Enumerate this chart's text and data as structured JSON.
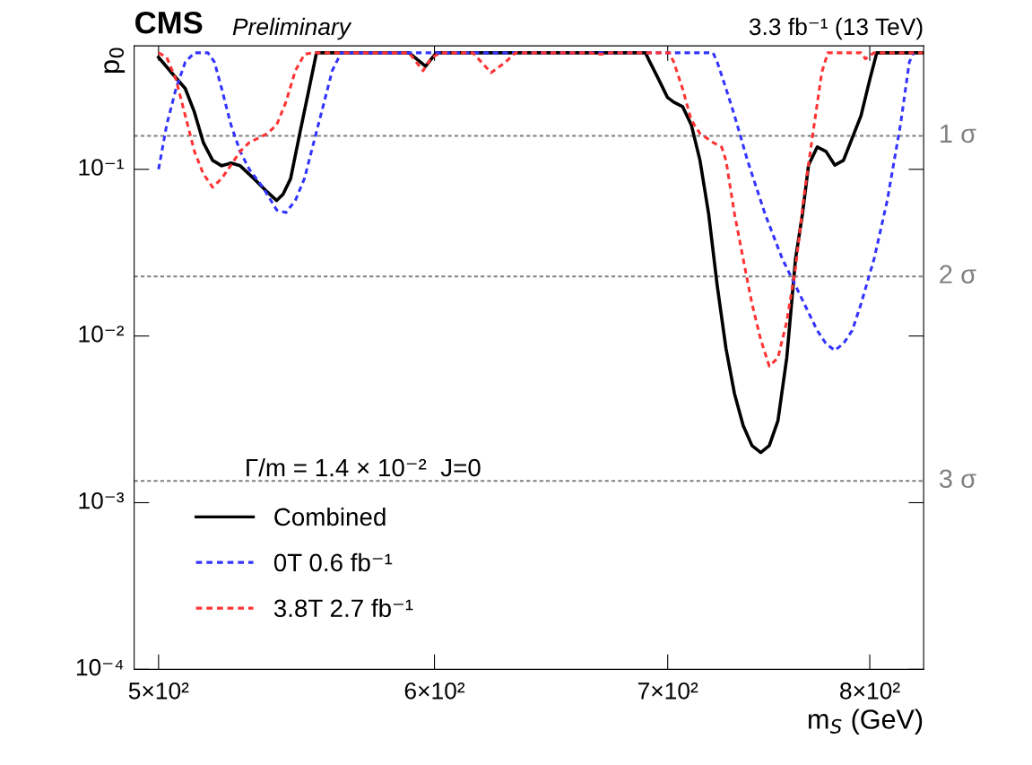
{
  "chart_data": {
    "type": "line",
    "title": "CMS",
    "subtitle": "Preliminary",
    "annotations": [
      "3.3 fb⁻¹ (13 TeV)",
      "Γ/m = 1.4 × 10⁻²  J=0"
    ],
    "xlabel": "m$_{S}$ (GeV)",
    "ylabel": "p$_{0}$",
    "log": "xy",
    "grid": false,
    "legend": "bottom left",
    "marker": "none",
    "xlim": [
      492,
      829
    ],
    "ylim": [
      0.0001,
      0.55
    ],
    "xticks": [
      {
        "value": 500,
        "label": "5×10²"
      },
      {
        "value": 600,
        "label": "6×10²"
      },
      {
        "value": 700,
        "label": "7×10²"
      },
      {
        "value": 800,
        "label": "8×10²"
      }
    ],
    "yticks": [
      {
        "value": 0.0001,
        "label": "10⁻⁴"
      },
      {
        "value": 0.001,
        "label": "10⁻³"
      },
      {
        "value": 0.01,
        "label": "10⁻²"
      },
      {
        "value": 0.1,
        "label": "10⁻¹"
      }
    ],
    "ref_lines": [
      {
        "axis": "y",
        "value": 0.1587,
        "label": "1 σ",
        "color": "#808080",
        "line_style": "dashed"
      },
      {
        "axis": "y",
        "value": 0.02275,
        "label": "2 σ",
        "color": "#808080",
        "line_style": "dashed"
      },
      {
        "axis": "y",
        "value": 0.00135,
        "label": "3 σ",
        "color": "#808080",
        "line_style": "dashed"
      }
    ],
    "series": [
      {
        "name": "Combined",
        "color": "#000000",
        "line_style": "solid",
        "x": [
          500,
          504.3,
          508.9,
          512,
          515,
          518.2,
          521.3,
          524.5,
          527.7,
          532.5,
          537.3,
          540.6,
          542.9,
          545.6,
          548.9,
          552.3,
          555,
          590,
          596.5,
          600.7,
          689.8,
          691.8,
          695.9,
          699.9,
          702.8,
          706.9,
          711,
          715.1,
          719.2,
          723.3,
          727.5,
          731.6,
          735.8,
          740.1,
          744.4,
          748.6,
          752.9,
          757.3,
          761.7,
          765.2,
          768.3,
          772.7,
          777.2,
          781.7,
          786.2,
          790.8,
          795.4,
          800,
          803.7,
          828.4
        ],
        "values": [
          0.47,
          0.38,
          0.305,
          0.22,
          0.145,
          0.113,
          0.105,
          0.109,
          0.105,
          0.088,
          0.073,
          0.065,
          0.071,
          0.088,
          0.164,
          0.305,
          0.5,
          0.5,
          0.415,
          0.5,
          0.5,
          0.44,
          0.345,
          0.27,
          0.253,
          0.238,
          0.185,
          0.113,
          0.054,
          0.02,
          0.0084,
          0.0045,
          0.0029,
          0.0022,
          0.002,
          0.0022,
          0.0031,
          0.0074,
          0.029,
          0.054,
          0.106,
          0.136,
          0.128,
          0.106,
          0.113,
          0.154,
          0.21,
          0.345,
          0.5,
          0.5
        ]
      },
      {
        "name": "0T 0.6 fb⁻¹",
        "color": "#3333ff",
        "line_style": "dashed",
        "x": [
          500,
          502.7,
          505.8,
          508.9,
          512,
          516.6,
          518.8,
          521.3,
          524.5,
          527.7,
          530.9,
          535.7,
          540.6,
          543.9,
          547.3,
          550.6,
          554,
          557.4,
          560.8,
          564.1,
          721.3,
          723.3,
          727.5,
          731.6,
          737.9,
          746.5,
          755.1,
          763.9,
          768.3,
          772.7,
          777.2,
          781.7,
          786.2,
          790.8,
          795.4,
          802.3,
          809.3,
          816.4,
          821.2,
          823.6
        ],
        "values": [
          0.1,
          0.185,
          0.305,
          0.44,
          0.5,
          0.5,
          0.44,
          0.305,
          0.185,
          0.128,
          0.1,
          0.078,
          0.057,
          0.055,
          0.065,
          0.088,
          0.145,
          0.238,
          0.39,
          0.5,
          0.5,
          0.44,
          0.305,
          0.21,
          0.113,
          0.054,
          0.029,
          0.0177,
          0.0138,
          0.0108,
          0.009,
          0.0082,
          0.009,
          0.0108,
          0.0156,
          0.029,
          0.065,
          0.185,
          0.44,
          0.5
        ]
      },
      {
        "name": "3.8T 2.7 fb⁻¹",
        "color": "#ff3333",
        "line_style": "dashed",
        "x": [
          500,
          502.7,
          505.8,
          508.9,
          512,
          515,
          518.2,
          521.3,
          524.5,
          527.7,
          530.9,
          534.1,
          537.3,
          540.6,
          543.9,
          547.3,
          550.6,
          554,
          590,
          595.5,
          598.9,
          602.8,
          615.4,
          622.9,
          628.9,
          633,
          665,
          669.8,
          674,
          700.8,
          702.8,
          706.9,
          711,
          715.1,
          721.3,
          725.4,
          727.5,
          731.6,
          735.8,
          740.1,
          744.4,
          748.6,
          752.9,
          757.3,
          761.7,
          765.9,
          770.5,
          775,
          778.1,
          795.4,
          797.7,
          802.3,
          828.4
        ],
        "values": [
          0.5,
          0.47,
          0.345,
          0.21,
          0.128,
          0.094,
          0.078,
          0.088,
          0.106,
          0.128,
          0.145,
          0.154,
          0.164,
          0.185,
          0.253,
          0.39,
          0.49,
          0.5,
          0.5,
          0.39,
          0.47,
          0.5,
          0.5,
          0.38,
          0.44,
          0.5,
          0.5,
          0.49,
          0.5,
          0.5,
          0.44,
          0.305,
          0.197,
          0.164,
          0.145,
          0.136,
          0.113,
          0.054,
          0.029,
          0.0156,
          0.0095,
          0.0066,
          0.0074,
          0.0122,
          0.0256,
          0.068,
          0.164,
          0.38,
          0.5,
          0.5,
          0.46,
          0.5,
          0.5
        ]
      }
    ]
  }
}
